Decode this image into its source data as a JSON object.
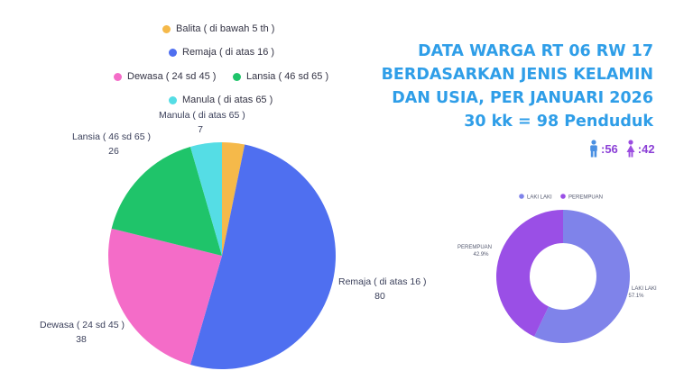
{
  "title": {
    "line1": "DATA WARGA RT 06 RW 17",
    "line2": "BERDASARKAN JENIS KELAMIN",
    "line3": "DAN USIA, PER JANUARI 2026",
    "line4": "30 kk = 98 Penduduk"
  },
  "counts": {
    "male": ":56",
    "female": ":42",
    "male_icon": "man-icon",
    "female_icon": "woman-icon",
    "male_color": "#4a90e2",
    "female_color": "#9b4de0"
  },
  "chart_data": [
    {
      "type": "pie",
      "title": "",
      "legend": [
        "Balita ( di bawah 5 th )",
        "Remaja ( di atas 16 )",
        "Dewasa ( 24 sd 45 )",
        "Lansia ( 46 sd 65 )",
        "Manula ( di atas 65 )"
      ],
      "legend_placement": "top",
      "slices": [
        {
          "label": "Balita ( di bawah 5 th )",
          "value": 5,
          "color": "#f5b94a",
          "labeled": false
        },
        {
          "label": "Remaja ( di atas 16 )",
          "value": 80,
          "color": "#4f6ff0",
          "labeled": true
        },
        {
          "label": "Dewasa ( 24 sd 45 )",
          "value": 38,
          "color": "#f46cc8",
          "labeled": true
        },
        {
          "label": "Lansia ( 46 sd 65 )",
          "value": 26,
          "color": "#1fc46a",
          "labeled": true
        },
        {
          "label": "Manula ( di atas 65 )",
          "value": 7,
          "color": "#55dde5",
          "labeled": true
        }
      ]
    },
    {
      "type": "donut",
      "title": "",
      "legend": [
        "LAKI LAKI",
        "PEREMPUAN"
      ],
      "legend_placement": "top",
      "slices": [
        {
          "label": "LAKI LAKI",
          "percent_label": "57.1%",
          "value": 57.1,
          "color": "#7f83ea"
        },
        {
          "label": "PEREMPUAN",
          "percent_label": "42.9%",
          "value": 42.9,
          "color": "#9a4fe6"
        }
      ]
    }
  ]
}
